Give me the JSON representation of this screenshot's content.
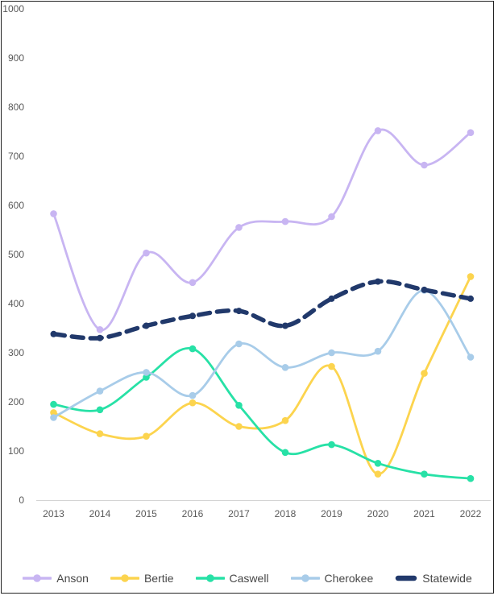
{
  "chart_data": {
    "type": "line",
    "title": "",
    "xlabel": "",
    "ylabel": "",
    "x": [
      "2013",
      "2014",
      "2015",
      "2016",
      "2017",
      "2018",
      "2019",
      "2020",
      "2021",
      "2022"
    ],
    "y_ticks": [
      0,
      100,
      200,
      300,
      400,
      500,
      600,
      700,
      800,
      900,
      1000
    ],
    "ylim": [
      0,
      1000
    ],
    "grid": false,
    "legend_position": "bottom",
    "series": [
      {
        "name": "Anson",
        "color": "#c8b5f2",
        "style": "solid",
        "values": [
          583,
          347,
          503,
          443,
          555,
          567,
          577,
          752,
          682,
          748
        ]
      },
      {
        "name": "Bertie",
        "color": "#fcd44e",
        "style": "solid",
        "values": [
          178,
          135,
          130,
          198,
          150,
          162,
          272,
          53,
          258,
          455
        ]
      },
      {
        "name": "Caswell",
        "color": "#27e1a6",
        "style": "solid",
        "values": [
          195,
          184,
          250,
          308,
          193,
          97,
          113,
          75,
          53,
          44
        ]
      },
      {
        "name": "Cherokee",
        "color": "#a8cce9",
        "style": "solid",
        "values": [
          168,
          222,
          260,
          213,
          318,
          270,
          300,
          303,
          427,
          291
        ]
      },
      {
        "name": "Statewide",
        "color": "#21396b",
        "style": "dashed",
        "values": [
          338,
          330,
          355,
          375,
          385,
          355,
          410,
          445,
          428,
          410
        ]
      }
    ]
  },
  "axes": {
    "tick_color": "#595959",
    "axis_line_color": "#d4d4d4"
  },
  "frame": {
    "border_color": "#222222",
    "background": "#ffffff"
  }
}
